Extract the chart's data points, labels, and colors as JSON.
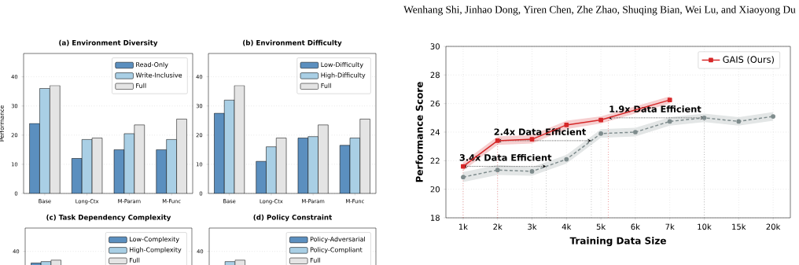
{
  "chart_data": [
    {
      "type": "bar",
      "title": "(a) Environment Diversity",
      "ylabel": "Performance",
      "categories": [
        "Base",
        "Long-Ctx",
        "M-Param",
        "M-Func"
      ],
      "series": [
        {
          "name": "Read-Only",
          "color": "#5b8fbf",
          "values": [
            24,
            12,
            15,
            15
          ]
        },
        {
          "name": "Write-Inclusive",
          "color": "#a9cfe5",
          "values": [
            36,
            18.5,
            20.5,
            18.5
          ]
        },
        {
          "name": "Full",
          "color": "#e4e4e4",
          "values": [
            37,
            19,
            23.5,
            25.5
          ]
        }
      ],
      "ylim": [
        0,
        48
      ],
      "yticks": [
        0,
        10,
        20,
        30,
        40
      ],
      "grid": "y",
      "legend": "top right"
    },
    {
      "type": "bar",
      "title": "(b) Environment Difficulty",
      "categories": [
        "Base",
        "Long-Ctx",
        "M-Param",
        "M-Func"
      ],
      "series": [
        {
          "name": "Low-Difficulty",
          "color": "#5b8fbf",
          "values": [
            27.5,
            11,
            19,
            16.5
          ]
        },
        {
          "name": "High-Difficulty",
          "color": "#a9cfe5",
          "values": [
            32,
            16,
            19.5,
            19
          ]
        },
        {
          "name": "Full",
          "color": "#e4e4e4",
          "values": [
            37,
            19,
            23.5,
            25.5
          ]
        }
      ],
      "ylim": [
        0,
        48
      ],
      "yticks": [
        0,
        10,
        20,
        30,
        40
      ],
      "grid": "y",
      "legend": "top right"
    },
    {
      "type": "line",
      "xlabel": "Training Data Size",
      "ylabel": "Performance Score",
      "categories": [
        "1k",
        "2k",
        "3k",
        "4k",
        "5k",
        "6k",
        "7k",
        "10k",
        "15k",
        "20k"
      ],
      "series": [
        {
          "color": "#7f8c8d",
          "marker": "circle",
          "line_style": "dashed",
          "values": [
            20.85,
            21.35,
            21.25,
            22.1,
            23.9,
            24.0,
            24.75,
            25.0,
            24.75,
            25.1
          ],
          "lower": [
            20.5,
            21.0,
            20.95,
            21.8,
            23.6,
            23.7,
            24.45,
            24.7,
            24.45,
            24.8
          ],
          "upper": [
            21.2,
            21.7,
            21.55,
            22.4,
            24.2,
            24.3,
            25.05,
            25.3,
            25.05,
            25.4
          ]
        },
        {
          "name": "GAIS (Ours)",
          "color": "#d62728",
          "marker": "square",
          "line_style": "solid",
          "values": [
            21.6,
            23.4,
            23.5,
            24.5,
            24.85,
            null,
            26.25,
            null,
            null,
            null
          ],
          "lower": [
            21.3,
            23.1,
            23.2,
            24.2,
            24.6,
            null,
            26.0,
            null,
            null,
            null
          ],
          "upper": [
            21.9,
            23.7,
            23.8,
            24.8,
            25.1,
            null,
            26.5,
            null,
            null,
            null
          ]
        }
      ],
      "ylim": [
        18,
        30
      ],
      "yticks": [
        18,
        20,
        22,
        24,
        26,
        28,
        30
      ],
      "grid": true,
      "legend": "top right",
      "annotations": [
        "Wenhang Shi, Jinhao Dong, Yiren Chen, Zhe Zhao, Shuqing Bian, Wei Lu, and Xiaoyong Du",
        {
          "text": "3.4x Data Efficient",
          "x": "1k",
          "y": 21.6
        },
        {
          "text": "2.4x Data Efficient",
          "x": "2k",
          "y": 23.4
        },
        {
          "text": "1.9x Data Efficient",
          "x": "10k",
          "y": 25.0
        }
      ]
    },
    {
      "type": "bar",
      "title": "(c) Task Dependency Complexity",
      "categories": [
        null,
        null,
        null,
        null
      ],
      "series": [
        {
          "name": "Low-Complexity",
          "color": "#5b8fbf",
          "values": [
            36,
            null,
            null,
            null
          ]
        },
        {
          "name": "High-Complexity",
          "color": "#a9cfe5",
          "values": [
            36.5,
            null,
            null,
            null
          ]
        },
        {
          "name": "Full",
          "color": "#e4e4e4",
          "values": [
            37,
            null,
            null,
            null
          ]
        }
      ],
      "ylim": [
        0,
        48
      ],
      "yticks": [
        0,
        10,
        20,
        30,
        40
      ],
      "grid": "y",
      "legend": "top right"
    },
    {
      "type": "bar",
      "title": "(d) Policy Constraint",
      "categories": [
        null,
        null,
        null,
        null
      ],
      "series": [
        {
          "name": "Policy-Adversarial",
          "color": "#5b8fbf",
          "values": [
            null,
            null,
            null,
            null
          ]
        },
        {
          "name": "Policy-Compliant",
          "color": "#a9cfe5",
          "values": [
            36.5,
            null,
            null,
            null
          ]
        },
        {
          "name": "Full",
          "color": "#e4e4e4",
          "values": [
            37,
            null,
            null,
            null
          ]
        }
      ],
      "ylim": [
        0,
        48
      ],
      "yticks": [
        0,
        10,
        20,
        30,
        40
      ],
      "grid": "y",
      "legend": "top right"
    }
  ]
}
